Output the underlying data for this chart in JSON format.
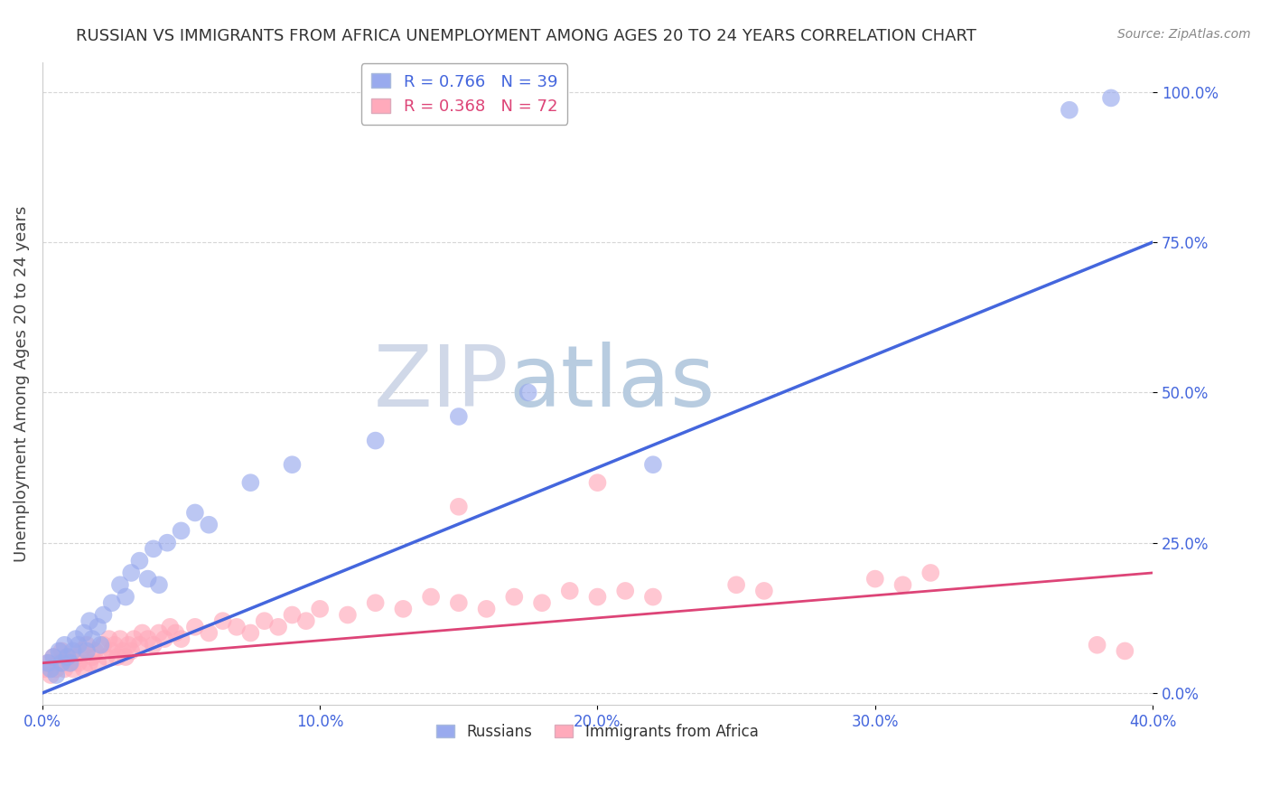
{
  "title": "RUSSIAN VS IMMIGRANTS FROM AFRICA UNEMPLOYMENT AMONG AGES 20 TO 24 YEARS CORRELATION CHART",
  "source": "Source: ZipAtlas.com",
  "ylabel": "Unemployment Among Ages 20 to 24 years",
  "xlim": [
    0.0,
    0.4
  ],
  "ylim": [
    -0.02,
    1.05
  ],
  "xtick_labels": [
    "0.0%",
    "10.0%",
    "20.0%",
    "30.0%",
    "40.0%"
  ],
  "xtick_vals": [
    0.0,
    0.1,
    0.2,
    0.3,
    0.4
  ],
  "ytick_labels": [
    "0.0%",
    "25.0%",
    "50.0%",
    "75.0%",
    "100.0%"
  ],
  "ytick_vals": [
    0.0,
    0.25,
    0.5,
    0.75,
    1.0
  ],
  "russians_x": [
    0.002,
    0.003,
    0.004,
    0.005,
    0.006,
    0.007,
    0.008,
    0.009,
    0.01,
    0.011,
    0.012,
    0.013,
    0.015,
    0.016,
    0.017,
    0.018,
    0.02,
    0.021,
    0.022,
    0.025,
    0.028,
    0.03,
    0.032,
    0.035,
    0.038,
    0.04,
    0.042,
    0.045,
    0.05,
    0.055,
    0.06,
    0.075,
    0.09,
    0.12,
    0.15,
    0.175,
    0.22,
    0.37,
    0.385
  ],
  "russians_y": [
    0.05,
    0.04,
    0.06,
    0.03,
    0.07,
    0.05,
    0.08,
    0.06,
    0.05,
    0.07,
    0.09,
    0.08,
    0.1,
    0.07,
    0.12,
    0.09,
    0.11,
    0.08,
    0.13,
    0.15,
    0.18,
    0.16,
    0.2,
    0.22,
    0.19,
    0.24,
    0.18,
    0.25,
    0.27,
    0.3,
    0.28,
    0.35,
    0.38,
    0.42,
    0.46,
    0.5,
    0.38,
    0.97,
    0.99
  ],
  "africa_x": [
    0.001,
    0.002,
    0.003,
    0.004,
    0.005,
    0.006,
    0.007,
    0.008,
    0.009,
    0.01,
    0.011,
    0.012,
    0.013,
    0.014,
    0.015,
    0.016,
    0.017,
    0.018,
    0.019,
    0.02,
    0.022,
    0.023,
    0.024,
    0.025,
    0.026,
    0.027,
    0.028,
    0.029,
    0.03,
    0.031,
    0.032,
    0.033,
    0.035,
    0.036,
    0.038,
    0.04,
    0.042,
    0.044,
    0.046,
    0.048,
    0.05,
    0.055,
    0.06,
    0.065,
    0.07,
    0.075,
    0.08,
    0.085,
    0.09,
    0.095,
    0.1,
    0.11,
    0.12,
    0.13,
    0.14,
    0.15,
    0.16,
    0.17,
    0.18,
    0.19,
    0.2,
    0.21,
    0.22,
    0.25,
    0.26,
    0.3,
    0.31,
    0.32,
    0.15,
    0.2,
    0.38,
    0.39
  ],
  "africa_y": [
    0.04,
    0.05,
    0.03,
    0.06,
    0.04,
    0.05,
    0.07,
    0.04,
    0.06,
    0.05,
    0.04,
    0.06,
    0.05,
    0.07,
    0.04,
    0.08,
    0.05,
    0.06,
    0.07,
    0.05,
    0.08,
    0.06,
    0.09,
    0.07,
    0.08,
    0.06,
    0.09,
    0.07,
    0.06,
    0.08,
    0.07,
    0.09,
    0.08,
    0.1,
    0.09,
    0.08,
    0.1,
    0.09,
    0.11,
    0.1,
    0.09,
    0.11,
    0.1,
    0.12,
    0.11,
    0.1,
    0.12,
    0.11,
    0.13,
    0.12,
    0.14,
    0.13,
    0.15,
    0.14,
    0.16,
    0.15,
    0.14,
    0.16,
    0.15,
    0.17,
    0.16,
    0.17,
    0.16,
    0.18,
    0.17,
    0.19,
    0.18,
    0.2,
    0.31,
    0.35,
    0.08,
    0.07
  ],
  "blue_line_x": [
    0.0,
    0.4
  ],
  "blue_line_y": [
    0.0,
    0.75
  ],
  "pink_line_x": [
    0.0,
    0.4
  ],
  "pink_line_y": [
    0.05,
    0.2
  ],
  "blue_color": "#4466dd",
  "pink_color": "#dd4477",
  "blue_scatter_color": "#99aaee",
  "pink_scatter_color": "#ffaabb",
  "watermark_zip_color": "#d0d8e8",
  "watermark_atlas_color": "#b8cce0",
  "background_color": "#ffffff",
  "grid_color": "#cccccc",
  "title_fontsize": 13,
  "axis_label_fontsize": 13,
  "tick_fontsize": 12
}
